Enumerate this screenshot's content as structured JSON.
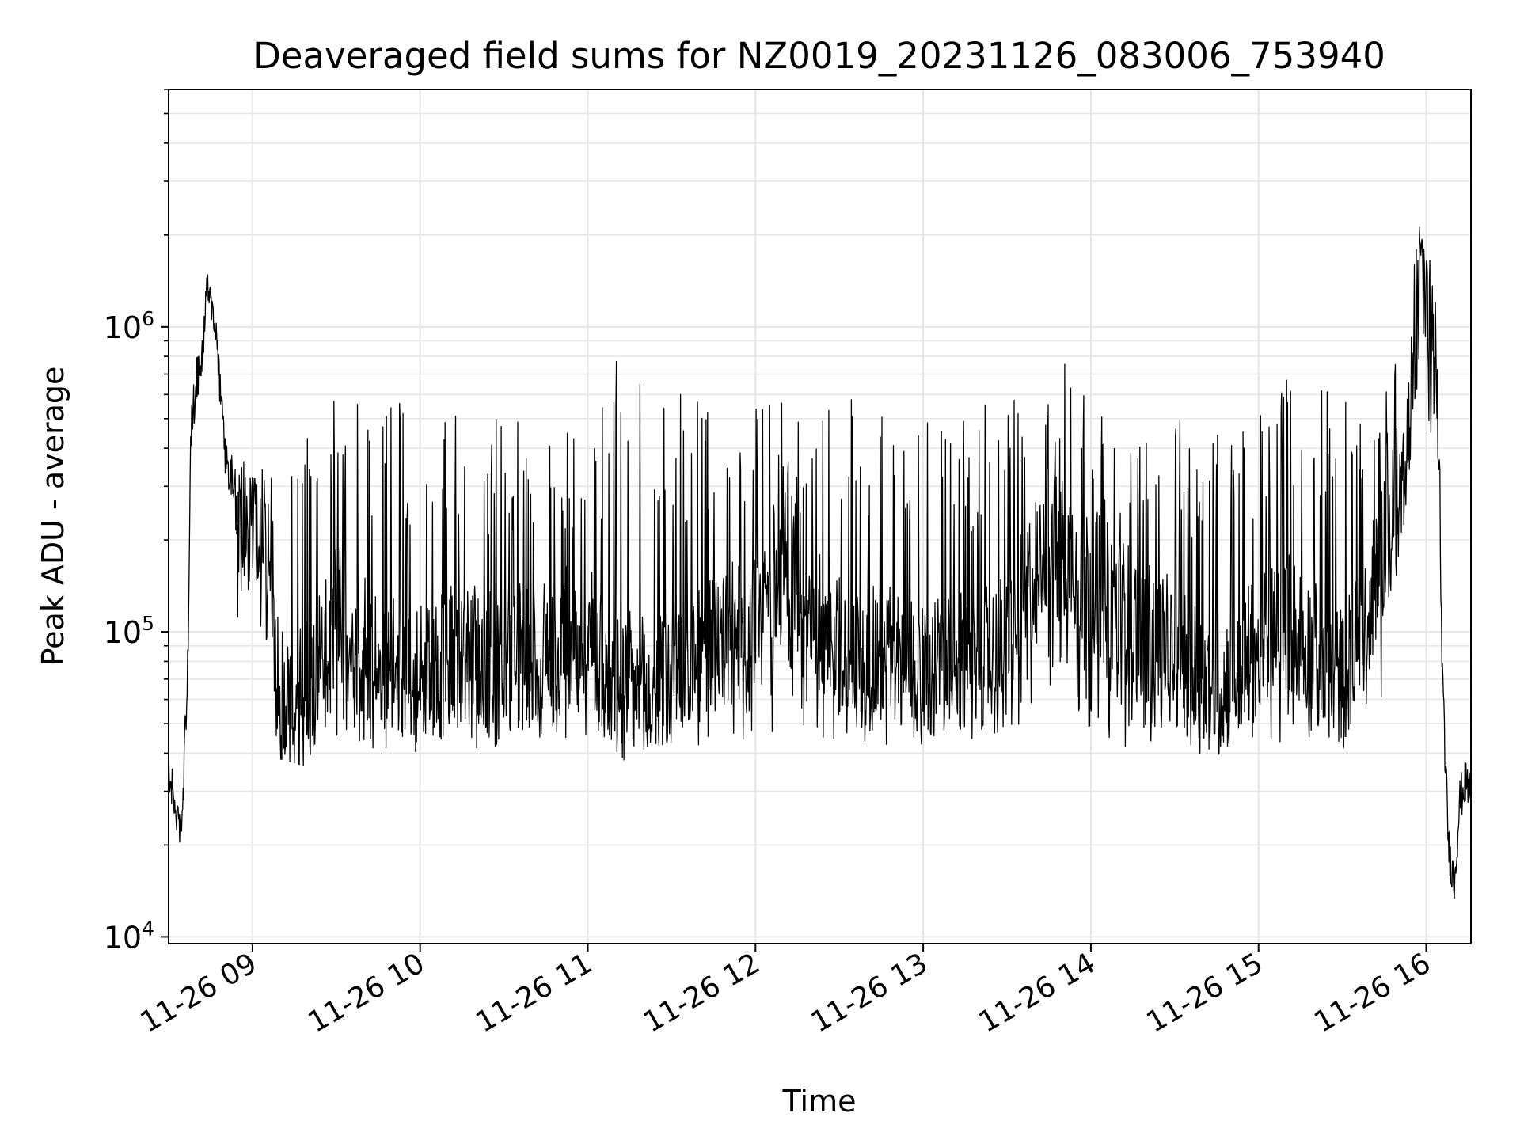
{
  "chart_data": {
    "type": "line",
    "title": "Deaveraged field sums for NZ0019_20231126_083006_753940",
    "xlabel": "Time",
    "ylabel": "Peak ADU - average",
    "yscale": "log",
    "ylim": [
      9500,
      6000000
    ],
    "xlim": [
      "2023-11-26 08:30",
      "2023-11-26 16:16"
    ],
    "grid": true,
    "line_color": "#000000",
    "grid_color": "#e6e6e6",
    "x_ticks": [
      {
        "value": "2023-11-26 09:00",
        "label": "11-26 09"
      },
      {
        "value": "2023-11-26 10:00",
        "label": "11-26 10"
      },
      {
        "value": "2023-11-26 11:00",
        "label": "11-26 11"
      },
      {
        "value": "2023-11-26 12:00",
        "label": "11-26 12"
      },
      {
        "value": "2023-11-26 13:00",
        "label": "11-26 13"
      },
      {
        "value": "2023-11-26 14:00",
        "label": "11-26 14"
      },
      {
        "value": "2023-11-26 15:00",
        "label": "11-26 15"
      },
      {
        "value": "2023-11-26 16:00",
        "label": "11-26 16"
      }
    ],
    "y_ticks": [
      {
        "value": 10000,
        "base": "10",
        "exp": "4"
      },
      {
        "value": 100000,
        "base": "10",
        "exp": "5"
      },
      {
        "value": 1000000,
        "base": "10",
        "exp": "6"
      }
    ],
    "series": [
      {
        "x": [
          "2023-11-26 08:30",
          "2023-11-26 08:32",
          "2023-11-26 08:34",
          "2023-11-26 08:35",
          "2023-11-26 08:37",
          "2023-11-26 08:38",
          "2023-11-26 08:40",
          "2023-11-26 08:42",
          "2023-11-26 08:44",
          "2023-11-26 08:46",
          "2023-11-26 08:48",
          "2023-11-26 08:50",
          "2023-11-26 08:53",
          "2023-11-26 08:56",
          "2023-11-26 09:00",
          "2023-11-26 09:05",
          "2023-11-26 09:08",
          "2023-11-26 09:10",
          "2023-11-26 09:15",
          "2023-11-26 09:22",
          "2023-11-26 09:30",
          "2023-11-26 09:40",
          "2023-11-26 09:50",
          "2023-11-26 10:00",
          "2023-11-26 10:15",
          "2023-11-26 10:30",
          "2023-11-26 10:45",
          "2023-11-26 11:00",
          "2023-11-26 11:10",
          "2023-11-26 11:20",
          "2023-11-26 11:35",
          "2023-11-26 11:50",
          "2023-11-26 12:00",
          "2023-11-26 12:10",
          "2023-11-26 12:15",
          "2023-11-26 12:30",
          "2023-11-26 12:45",
          "2023-11-26 13:00",
          "2023-11-26 13:10",
          "2023-11-26 13:30",
          "2023-11-26 13:45",
          "2023-11-26 14:00",
          "2023-11-26 14:15",
          "2023-11-26 14:30",
          "2023-11-26 14:45",
          "2023-11-26 15:00",
          "2023-11-26 15:10",
          "2023-11-26 15:20",
          "2023-11-26 15:30",
          "2023-11-26 15:35",
          "2023-11-26 15:40",
          "2023-11-26 15:45",
          "2023-11-26 15:50",
          "2023-11-26 15:53",
          "2023-11-26 15:56",
          "2023-11-26 15:58",
          "2023-11-26 16:00",
          "2023-11-26 16:02",
          "2023-11-26 16:04",
          "2023-11-26 16:06",
          "2023-11-26 16:08",
          "2023-11-26 16:10",
          "2023-11-26 16:12",
          "2023-11-26 16:14",
          "2023-11-26 16:16"
        ],
        "y": [
          35000,
          28000,
          22000,
          25000,
          90000,
          450000,
          680000,
          800000,
          1350000,
          1200000,
          700000,
          380000,
          320000,
          260000,
          220000,
          150000,
          80000,
          60000,
          55000,
          70000,
          110000,
          90000,
          80000,
          75000,
          85000,
          80000,
          90000,
          100000,
          70000,
          65000,
          75000,
          95000,
          110000,
          180000,
          150000,
          90000,
          85000,
          80000,
          75000,
          90000,
          220000,
          150000,
          110000,
          85000,
          65000,
          90000,
          110000,
          85000,
          70000,
          90000,
          130000,
          200000,
          280000,
          380000,
          800000,
          2000000,
          1500000,
          1000000,
          500000,
          60000,
          20000,
          15000,
          28000,
          32000,
          30000
        ]
      }
    ],
    "peak_overlay": {
      "x": [
        "2023-11-26 08:30",
        "2023-11-26 09:00",
        "2023-11-26 09:10",
        "2023-11-26 09:30",
        "2023-11-26 10:00",
        "2023-11-26 10:30",
        "2023-11-26 11:00",
        "2023-11-26 11:10",
        "2023-11-26 11:30",
        "2023-11-26 12:00",
        "2023-11-26 12:20",
        "2023-11-26 12:40",
        "2023-11-26 13:00",
        "2023-11-26 13:20",
        "2023-11-26 13:30",
        "2023-11-26 13:50",
        "2023-11-26 14:00",
        "2023-11-26 14:20",
        "2023-11-26 14:40",
        "2023-11-26 15:00",
        "2023-11-26 15:10",
        "2023-11-26 15:30",
        "2023-11-26 15:45",
        "2023-11-26 15:55",
        "2023-11-26 16:00"
      ],
      "high": [
        60000,
        400000,
        350000,
        600000,
        550000,
        500000,
        450000,
        900000,
        600000,
        650000,
        550000,
        600000,
        500000,
        550000,
        600000,
        800000,
        550000,
        450000,
        550000,
        500000,
        700000,
        600000,
        600000,
        2500000,
        1500000
      ],
      "low": [
        25000,
        150000,
        45000,
        40000,
        40000,
        42000,
        45000,
        35000,
        40000,
        45000,
        40000,
        42000,
        42000,
        45000,
        45000,
        50000,
        45000,
        40000,
        40000,
        45000,
        40000,
        45000,
        60000,
        500000,
        400000
      ]
    }
  }
}
